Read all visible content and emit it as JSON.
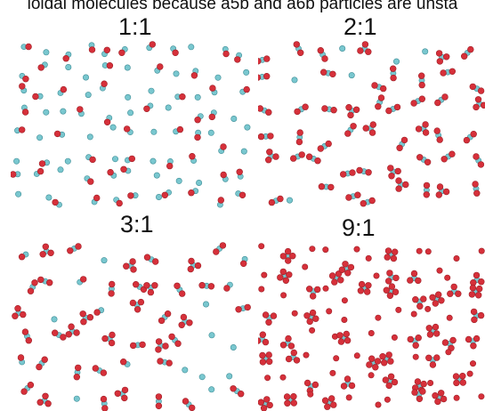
{
  "caption": "loidal molecules because a5b and a6b particles are unsta",
  "panels": [
    {
      "label": "1:1",
      "pattern": "ab",
      "rows": 8,
      "cols": 11
    },
    {
      "label": "2:1",
      "pattern": "ab2",
      "rows": 6,
      "cols": 9
    },
    {
      "label": "3:1",
      "pattern": "ab3",
      "rows": 6,
      "cols": 9
    },
    {
      "label": "9:1",
      "pattern": "ab9",
      "rows": 8,
      "cols": 11
    }
  ],
  "colors": {
    "red": "#d6303a",
    "cyan": "#79c7cf",
    "background": "#ffffff"
  }
}
